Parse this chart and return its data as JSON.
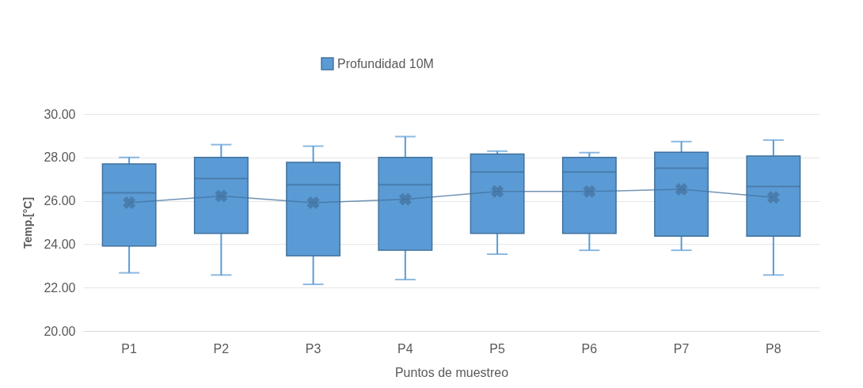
{
  "chart_data": {
    "type": "box",
    "xlabel": "Puntos de muestreo",
    "ylabel": "Temp.[°C]",
    "categories": [
      "P1",
      "P2",
      "P3",
      "P4",
      "P5",
      "P6",
      "P7",
      "P8"
    ],
    "series": [
      {
        "name": "Profundidad 10M",
        "color": "#5b9bd5",
        "boxes": [
          {
            "low": 22.68,
            "q1": 23.91,
            "median": 26.37,
            "q3": 27.7,
            "high": 28.0,
            "mean": 25.91
          },
          {
            "low": 22.58,
            "q1": 24.5,
            "median": 27.03,
            "q3": 28.0,
            "high": 28.59,
            "mean": 26.22
          },
          {
            "low": 22.15,
            "q1": 23.47,
            "median": 26.74,
            "q3": 27.77,
            "high": 28.52,
            "mean": 25.91
          },
          {
            "low": 22.37,
            "q1": 23.72,
            "median": 26.74,
            "q3": 28.0,
            "high": 28.96,
            "mean": 26.07
          },
          {
            "low": 23.54,
            "q1": 24.5,
            "median": 27.33,
            "q3": 28.16,
            "high": 28.29,
            "mean": 26.43
          },
          {
            "low": 23.72,
            "q1": 24.5,
            "median": 27.33,
            "q3": 28.0,
            "high": 28.22,
            "mean": 26.43
          },
          {
            "low": 23.72,
            "q1": 24.37,
            "median": 27.5,
            "q3": 28.24,
            "high": 28.73,
            "mean": 26.53
          },
          {
            "low": 22.58,
            "q1": 24.37,
            "median": 26.66,
            "q3": 28.07,
            "high": 28.8,
            "mean": 26.16
          }
        ]
      },
      {
        "type": "line",
        "color": "#41719c",
        "values": [
          25.91,
          26.22,
          25.91,
          26.07,
          26.43,
          26.43,
          26.53,
          26.16
        ]
      }
    ],
    "ylim": [
      20,
      30
    ],
    "yticks": [
      {
        "value": 20,
        "label": "20.00"
      },
      {
        "value": 22,
        "label": "22.00"
      },
      {
        "value": 24,
        "label": "24.00"
      },
      {
        "value": 26,
        "label": "26.00"
      },
      {
        "value": 28,
        "label": "28.00"
      },
      {
        "value": 30,
        "label": "30.00"
      }
    ],
    "grid": "y",
    "legend": "top"
  }
}
